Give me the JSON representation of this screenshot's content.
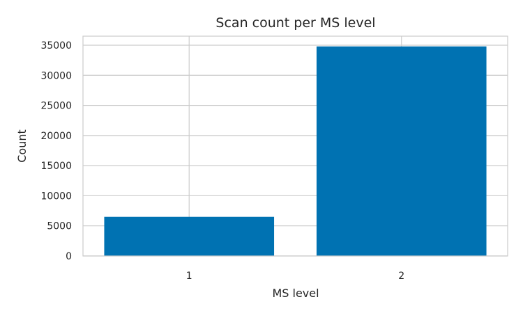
{
  "chart_data": {
    "type": "bar",
    "title": "Scan count per MS level",
    "xlabel": "MS level",
    "ylabel": "Count",
    "categories": [
      "1",
      "2"
    ],
    "values": [
      6500,
      34800
    ],
    "ylim": [
      0,
      36500
    ],
    "yticks": [
      0,
      5000,
      10000,
      15000,
      20000,
      25000,
      30000,
      35000
    ],
    "bar_color": "#0072b2",
    "grid": true
  }
}
